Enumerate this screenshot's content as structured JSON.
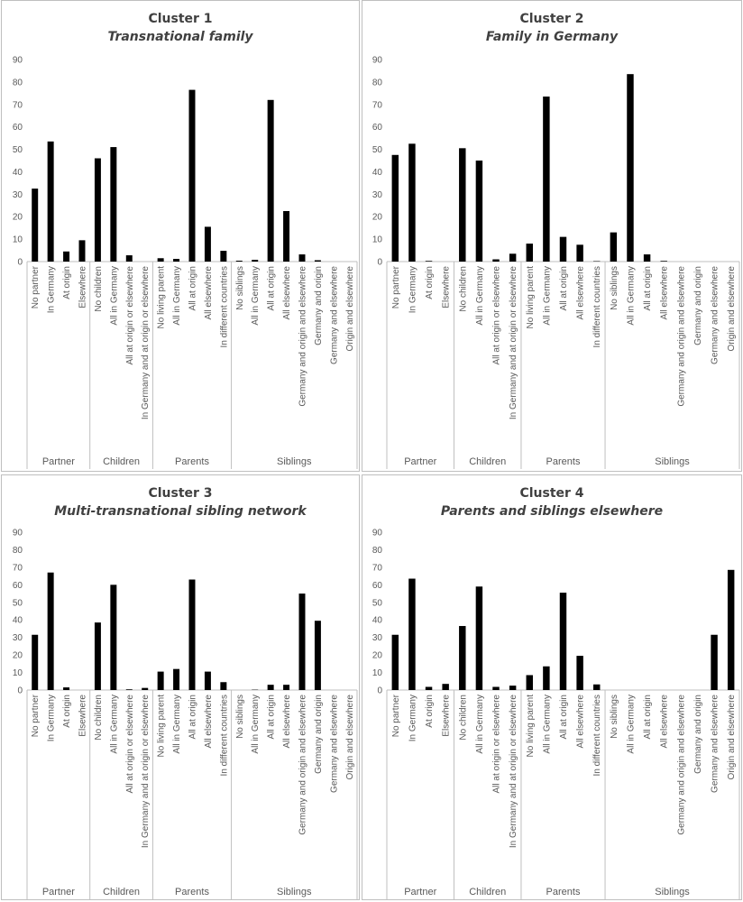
{
  "chart_data": [
    {
      "type": "bar",
      "title": "Cluster 1",
      "subtitle": "Transnational family",
      "ylim": [
        0,
        90
      ],
      "yticks": [
        0,
        10,
        20,
        30,
        40,
        50,
        60,
        70,
        80,
        90
      ],
      "groups": [
        {
          "name": "Partner",
          "categories": [
            "No partner",
            "In Germany",
            "At origin",
            "Elsewhere"
          ],
          "values": [
            32.5,
            53.5,
            4.5,
            9.5
          ]
        },
        {
          "name": "Children",
          "categories": [
            "No children",
            "All in Germany",
            "All at origin or elsewhere",
            "In Germany and at origin or elsewhere"
          ],
          "values": [
            46,
            51,
            2.8,
            0
          ]
        },
        {
          "name": "Parents",
          "categories": [
            "No living parent",
            "All in Germany",
            "All at origin",
            "All elsewhere",
            "In different countries"
          ],
          "values": [
            1.5,
            1.2,
            76.5,
            15.5,
            4.8
          ]
        },
        {
          "name": "Siblings",
          "categories": [
            "No siblings",
            "All in Germany",
            "All at origin",
            "All elsewhere",
            "Germany and origin and elsewhere",
            "Germany and origin",
            "Germany and elsewhere",
            "Origin and elsewhere"
          ],
          "values": [
            0.4,
            0.8,
            72,
            22.5,
            3.2,
            0.6,
            0,
            0
          ]
        }
      ]
    },
    {
      "type": "bar",
      "title": "Cluster 2",
      "subtitle": "Family in Germany",
      "ylim": [
        0,
        90
      ],
      "yticks": [
        0,
        10,
        20,
        30,
        40,
        50,
        60,
        70,
        80,
        90
      ],
      "groups": [
        {
          "name": "Partner",
          "categories": [
            "No partner",
            "In Germany",
            "At origin",
            "Elsewhere"
          ],
          "values": [
            47.5,
            52.5,
            0.3,
            0
          ]
        },
        {
          "name": "Children",
          "categories": [
            "No children",
            "All in Germany",
            "All at origin or elsewhere",
            "In Germany and at origin or elsewhere"
          ],
          "values": [
            50.5,
            45,
            1,
            3.5
          ]
        },
        {
          "name": "Parents",
          "categories": [
            "No living parent",
            "All in Germany",
            "All at origin",
            "All elsewhere",
            "In different countries"
          ],
          "values": [
            8,
            73.5,
            11,
            7.5,
            0.2
          ]
        },
        {
          "name": "Siblings",
          "categories": [
            "No siblings",
            "All in Germany",
            "All at origin",
            "All elsewhere",
            "Germany and origin and elsewhere",
            "Germany and origin",
            "Germany and elsewhere",
            "Origin and elsewhere"
          ],
          "values": [
            13,
            83.5,
            3.2,
            0.3,
            0,
            0,
            0,
            0
          ]
        }
      ]
    },
    {
      "type": "bar",
      "title": "Cluster 3",
      "subtitle": "Multi-transnational sibling network",
      "ylim": [
        0,
        90
      ],
      "yticks": [
        0,
        10,
        20,
        30,
        40,
        50,
        60,
        70,
        80,
        90
      ],
      "groups": [
        {
          "name": "Partner",
          "categories": [
            "No partner",
            "In Germany",
            "At origin",
            "Elsewhere"
          ],
          "values": [
            31.5,
            67,
            1.5,
            0
          ]
        },
        {
          "name": "Children",
          "categories": [
            "No children",
            "All in Germany",
            "All at origin or elsewhere",
            "In Germany and at origin or elsewhere"
          ],
          "values": [
            38.5,
            60,
            0.4,
            1.2
          ]
        },
        {
          "name": "Parents",
          "categories": [
            "No living parent",
            "All in Germany",
            "All at origin",
            "All elsewhere",
            "In different countries"
          ],
          "values": [
            10.5,
            12,
            63,
            10.5,
            4.5
          ]
        },
        {
          "name": "Siblings",
          "categories": [
            "No siblings",
            "All in Germany",
            "All at origin",
            "All elsewhere",
            "Germany and origin and elsewhere",
            "Germany and origin",
            "Germany and elsewhere",
            "Origin and elsewhere"
          ],
          "values": [
            0,
            0.2,
            3,
            3,
            55,
            39.5,
            0,
            0
          ]
        }
      ]
    },
    {
      "type": "bar",
      "title": "Cluster 4",
      "subtitle": "Parents and siblings elsewhere",
      "ylim": [
        0,
        90
      ],
      "yticks": [
        0,
        10,
        20,
        30,
        40,
        50,
        60,
        70,
        80,
        90
      ],
      "groups": [
        {
          "name": "Partner",
          "categories": [
            "No partner",
            "In Germany",
            "At origin",
            "Elsewhere"
          ],
          "values": [
            31.5,
            63.5,
            1.8,
            3.5
          ]
        },
        {
          "name": "Children",
          "categories": [
            "No children",
            "All in Germany",
            "All at origin or elsewhere",
            "In Germany and at origin or elsewhere"
          ],
          "values": [
            36.5,
            59,
            1.8,
            2.5
          ]
        },
        {
          "name": "Parents",
          "categories": [
            "No living parent",
            "All in Germany",
            "All at origin",
            "All elsewhere",
            "In different countries"
          ],
          "values": [
            8.5,
            13.5,
            55.5,
            19.5,
            3.2
          ]
        },
        {
          "name": "Siblings",
          "categories": [
            "No siblings",
            "All in Germany",
            "All at origin",
            "All elsewhere",
            "Germany and origin and elsewhere",
            "Germany and origin",
            "Germany and elsewhere",
            "Origin and elsewhere"
          ],
          "values": [
            0,
            0,
            0,
            0,
            0,
            0,
            31.5,
            68.5
          ]
        }
      ]
    }
  ]
}
